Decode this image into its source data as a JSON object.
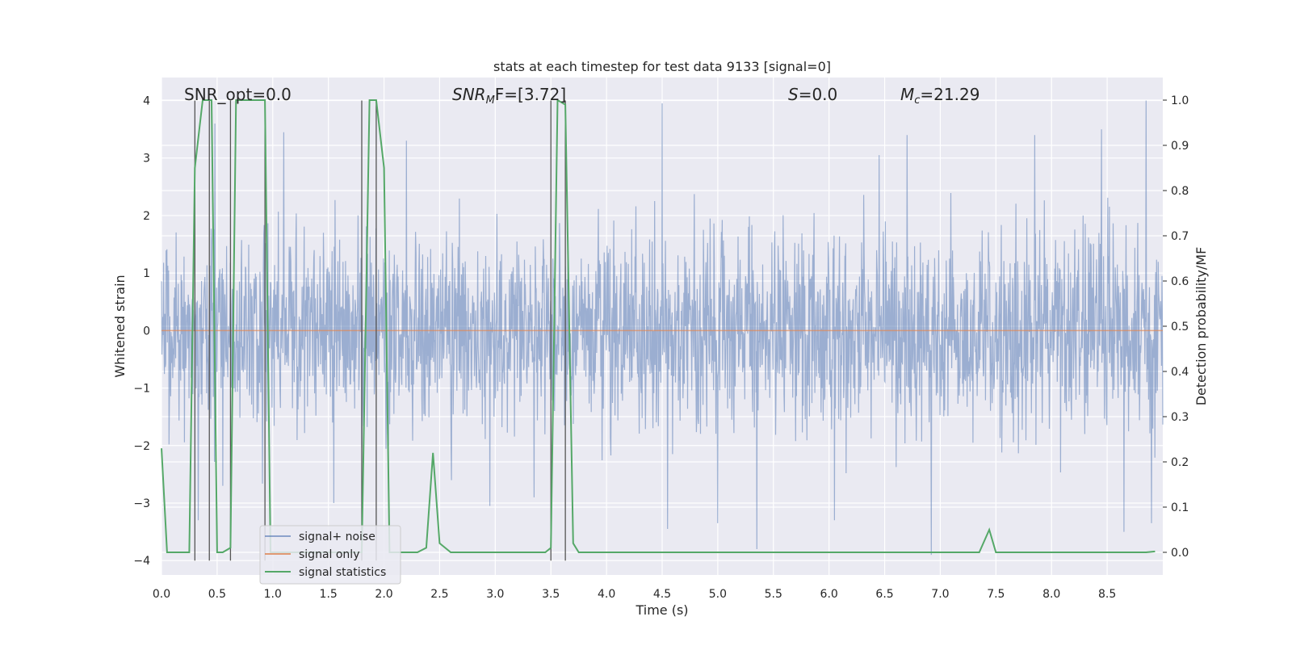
{
  "chart_data": {
    "type": "line",
    "title": "stats at each timestep for test data 9133 [signal=0]",
    "xlabel": "Time (s)",
    "ylabel": "Whitened strain",
    "y2label": "Detection probability/MF",
    "xlim": [
      0.0,
      9.0
    ],
    "ylim": [
      -4.25,
      4.4
    ],
    "y2lim": [
      -0.05,
      1.05
    ],
    "xticks": [
      "0.0",
      "0.5",
      "1.0",
      "1.5",
      "2.0",
      "2.5",
      "3.0",
      "3.5",
      "4.0",
      "4.5",
      "5.0",
      "5.5",
      "6.0",
      "6.5",
      "7.0",
      "7.5",
      "8.0",
      "8.5"
    ],
    "yticks": [
      "4",
      "3",
      "2",
      "1",
      "0",
      "−1",
      "−2",
      "−3",
      "−4"
    ],
    "y2ticks": [
      "1.0",
      "0.9",
      "0.8",
      "0.7",
      "0.6",
      "0.5",
      "0.4",
      "0.3",
      "0.2",
      "0.1",
      "0.0"
    ],
    "annotations": {
      "snr_opt": "SNR_opt=0.0",
      "snr_mf_sym": "SNR",
      "snr_mf_sub": "M",
      "snr_mf_rest": "F=[3.72]",
      "s_sym": "S",
      "s_rest": "=0.0",
      "mc_sym": "M",
      "mc_sub": "c",
      "mc_rest": "=21.29"
    },
    "vertical_lines": [
      0.3,
      0.43,
      0.62,
      0.93,
      1.8,
      1.93,
      3.5,
      3.63
    ],
    "series": [
      {
        "name": "signal+ noise",
        "color": "#4c72b0",
        "style": "noise",
        "amplitude": 1.5,
        "extremes": [
          [
            0.33,
            -3.3
          ],
          [
            0.48,
            3.6
          ],
          [
            0.55,
            -2.7
          ],
          [
            1.1,
            3.45
          ],
          [
            1.55,
            -3.0
          ],
          [
            2.2,
            3.3
          ],
          [
            2.95,
            -3.05
          ],
          [
            3.35,
            -2.9
          ],
          [
            4.5,
            3.95
          ],
          [
            4.55,
            -3.45
          ],
          [
            5.0,
            -3.35
          ],
          [
            5.35,
            -3.8
          ],
          [
            6.05,
            -3.3
          ],
          [
            6.45,
            3.05
          ],
          [
            6.7,
            3.4
          ],
          [
            6.92,
            -3.9
          ],
          [
            7.85,
            3.4
          ],
          [
            8.45,
            3.5
          ],
          [
            8.65,
            -3.5
          ],
          [
            8.85,
            4.0
          ],
          [
            8.9,
            -3.35
          ]
        ]
      },
      {
        "name": "signal only",
        "color": "#dd8452",
        "value": 0.0
      },
      {
        "name": "signal statistics",
        "color": "#55a868",
        "axis": "right",
        "x": [
          0.0,
          0.05,
          0.25,
          0.3,
          0.37,
          0.45,
          0.5,
          0.55,
          0.62,
          0.67,
          0.7,
          0.75,
          0.93,
          0.98,
          1.05,
          1.1,
          1.2,
          1.5,
          1.7,
          1.8,
          1.87,
          1.93,
          2.0,
          2.05,
          2.1,
          2.3,
          2.38,
          2.44,
          2.5,
          2.6,
          2.7,
          3.0,
          3.2,
          3.45,
          3.5,
          3.56,
          3.63,
          3.7,
          3.75,
          3.8,
          4.0,
          5.0,
          6.0,
          7.0,
          7.35,
          7.44,
          7.5,
          7.6,
          8.0,
          8.5,
          8.85,
          8.93
        ],
        "values": [
          0.23,
          0.0,
          0.0,
          0.85,
          1.0,
          1.0,
          0.0,
          0.0,
          0.01,
          1.0,
          1.0,
          1.0,
          1.0,
          0.0,
          0.0,
          0.0,
          0.0,
          0.0,
          0.0,
          0.0,
          1.0,
          1.0,
          0.85,
          0.0,
          0.0,
          0.0,
          0.01,
          0.22,
          0.02,
          0.0,
          0.0,
          0.0,
          0.0,
          0.0,
          0.01,
          1.0,
          0.99,
          0.02,
          0.0,
          0.0,
          0.0,
          0.0,
          0.0,
          0.0,
          0.0,
          0.05,
          0.0,
          0.0,
          0.0,
          0.0,
          0.0,
          0.002
        ]
      }
    ],
    "legend_position": "lower-left"
  },
  "legend": {
    "noise": "signal+ noise",
    "signal": "signal only",
    "stats": "signal statistics"
  },
  "colors": {
    "panel_bg": "#eaeaf2",
    "grid": "#ffffff",
    "noise": "#4c72b0",
    "signal": "#dd8452",
    "stats": "#55a868",
    "vline": "#555555"
  }
}
